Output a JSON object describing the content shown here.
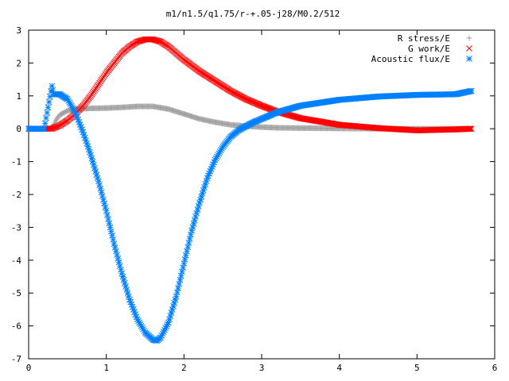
{
  "chart_data": {
    "type": "scatter",
    "title": "m1/n1.5/q1.75/r-+.05-j28/M0.2/512",
    "xlabel": "",
    "ylabel": "",
    "xlim": [
      0,
      6
    ],
    "ylim": [
      -7,
      3
    ],
    "x_ticks": [
      "0",
      "1",
      "2",
      "3",
      "4",
      "5",
      "6"
    ],
    "y_ticks": [
      "3",
      "2",
      "1",
      "0",
      "-1",
      "-2",
      "-3",
      "-4",
      "-5",
      "-6",
      "-7"
    ],
    "grid": false,
    "legend_position": "top-right",
    "series": [
      {
        "name": "R stress/E",
        "marker": "plus",
        "color": "#a0a0a0",
        "x": [
          0.0,
          0.2,
          0.3,
          0.35,
          0.4,
          0.5,
          0.6,
          0.8,
          1.0,
          1.2,
          1.4,
          1.6,
          1.8,
          2.0,
          2.2,
          2.4,
          2.6,
          2.8,
          3.0,
          3.2,
          3.5,
          4.0,
          4.5,
          5.0,
          5.5,
          5.7
        ],
        "y": [
          0.0,
          0.0,
          0.02,
          0.25,
          0.42,
          0.55,
          0.6,
          0.62,
          0.63,
          0.65,
          0.68,
          0.68,
          0.6,
          0.45,
          0.3,
          0.2,
          0.12,
          0.08,
          0.05,
          0.03,
          0.02,
          0.01,
          0.0,
          0.0,
          0.0,
          0.0
        ]
      },
      {
        "name": "G work/E",
        "marker": "cross",
        "color": "#ff0000",
        "x": [
          0.0,
          0.2,
          0.3,
          0.4,
          0.5,
          0.6,
          0.7,
          0.8,
          0.9,
          1.0,
          1.1,
          1.2,
          1.3,
          1.4,
          1.5,
          1.6,
          1.7,
          1.8,
          1.9,
          2.0,
          2.2,
          2.4,
          2.6,
          2.8,
          3.0,
          3.2,
          3.5,
          4.0,
          4.5,
          5.0,
          5.5,
          5.7
        ],
        "y": [
          0.0,
          0.0,
          0.0,
          0.1,
          0.25,
          0.45,
          0.7,
          1.0,
          1.35,
          1.7,
          2.0,
          2.3,
          2.5,
          2.65,
          2.72,
          2.72,
          2.65,
          2.5,
          2.3,
          2.1,
          1.75,
          1.45,
          1.15,
          0.9,
          0.7,
          0.52,
          0.32,
          0.12,
          0.02,
          -0.05,
          -0.02,
          0.0
        ]
      },
      {
        "name": "Acoustic flux/E",
        "marker": "star",
        "color": "#0080ff",
        "x": [
          0.0,
          0.2,
          0.3,
          0.32,
          0.4,
          0.5,
          0.6,
          0.7,
          0.8,
          0.9,
          1.0,
          1.1,
          1.2,
          1.3,
          1.4,
          1.5,
          1.6,
          1.65,
          1.7,
          1.8,
          1.9,
          2.0,
          2.1,
          2.2,
          2.3,
          2.4,
          2.5,
          2.6,
          2.7,
          2.8,
          2.9,
          3.0,
          3.2,
          3.5,
          4.0,
          4.5,
          5.0,
          5.5,
          5.7
        ],
        "y": [
          0.0,
          0.0,
          1.3,
          1.05,
          1.05,
          0.9,
          0.5,
          -0.1,
          -0.8,
          -1.6,
          -2.5,
          -3.5,
          -4.4,
          -5.2,
          -5.8,
          -6.2,
          -6.42,
          -6.45,
          -6.35,
          -5.9,
          -5.1,
          -4.1,
          -3.1,
          -2.25,
          -1.5,
          -0.95,
          -0.55,
          -0.25,
          -0.05,
          0.08,
          0.2,
          0.3,
          0.5,
          0.7,
          0.88,
          0.98,
          1.03,
          1.05,
          1.15
        ]
      }
    ]
  }
}
